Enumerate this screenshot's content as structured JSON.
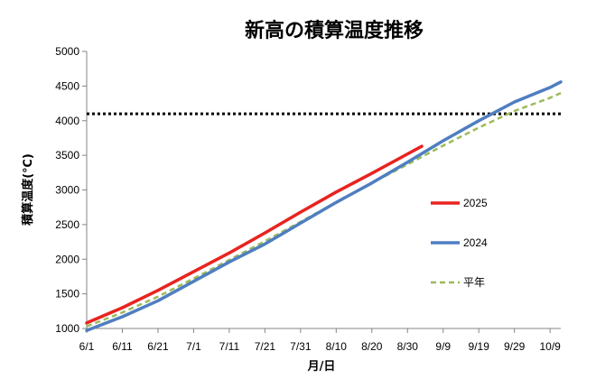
{
  "chart_data": {
    "type": "line",
    "title": "新高の積算温度推移",
    "xlabel": "月/日",
    "ylabel": "積算温度(℃)",
    "ylim": [
      1000,
      5000
    ],
    "yticks": [
      1000,
      1500,
      2000,
      2500,
      3000,
      3500,
      4000,
      4500,
      5000
    ],
    "xlim": [
      "6/1",
      "10/12"
    ],
    "xticks": [
      "6/1",
      "6/11",
      "6/21",
      "7/1",
      "7/11",
      "7/21",
      "7/31",
      "8/10",
      "8/20",
      "8/30",
      "9/9",
      "9/19",
      "9/29",
      "10/9"
    ],
    "grid": false,
    "legend_position": "right",
    "reference_line": {
      "y": 4100,
      "style": "dotted",
      "color": "#000000"
    },
    "series": [
      {
        "name": "2025",
        "color": "#e8231f",
        "style": "solid",
        "x": [
          "6/1",
          "6/11",
          "6/21",
          "7/1",
          "7/11",
          "7/21",
          "7/31",
          "8/10",
          "8/20",
          "8/30",
          "9/3"
        ],
        "values": [
          1080,
          1300,
          1550,
          1820,
          2090,
          2380,
          2680,
          2970,
          3240,
          3520,
          3630
        ]
      },
      {
        "name": "2024",
        "color": "#4f7ec0",
        "style": "solid",
        "x": [
          "6/1",
          "6/11",
          "6/21",
          "7/1",
          "7/11",
          "7/21",
          "7/31",
          "8/10",
          "8/20",
          "8/30",
          "9/9",
          "9/19",
          "9/29",
          "10/9",
          "10/12"
        ],
        "values": [
          970,
          1170,
          1400,
          1680,
          1960,
          2220,
          2520,
          2820,
          3100,
          3400,
          3710,
          4000,
          4270,
          4480,
          4560
        ]
      },
      {
        "name": "平年",
        "color": "#9bbb59",
        "style": "dashed",
        "x": [
          "6/1",
          "6/11",
          "6/21",
          "7/1",
          "7/11",
          "7/21",
          "7/31",
          "8/10",
          "8/20",
          "8/30",
          "9/9",
          "9/19",
          "9/29",
          "10/9",
          "10/12"
        ],
        "values": [
          1030,
          1230,
          1460,
          1720,
          1990,
          2260,
          2540,
          2820,
          3100,
          3370,
          3640,
          3900,
          4140,
          4330,
          4400
        ]
      }
    ]
  }
}
